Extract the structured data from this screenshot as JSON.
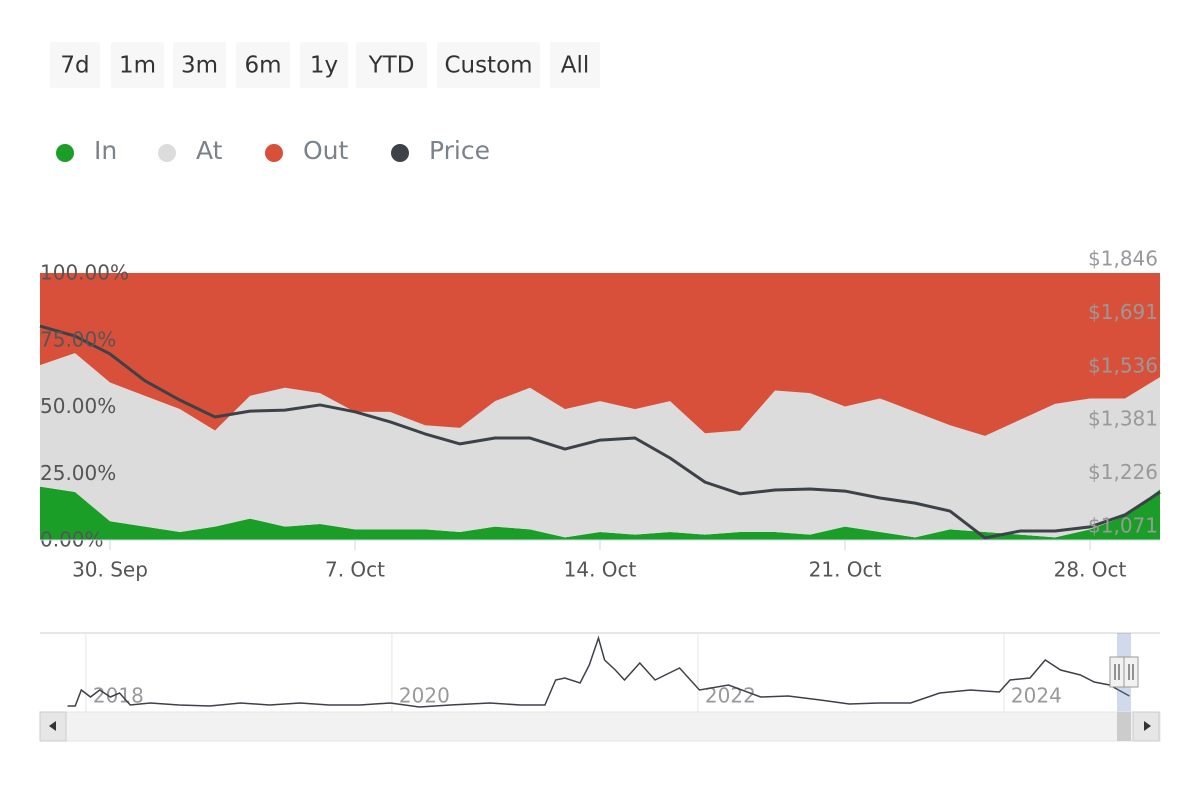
{
  "range_buttons": [
    "7d",
    "1m",
    "3m",
    "6m",
    "1y",
    "YTD",
    "Custom",
    "All"
  ],
  "chart_data": {
    "type": "stacked-area",
    "categories": [
      null,
      null,
      "30. Sep",
      null,
      null,
      null,
      null,
      null,
      null,
      "7. Oct",
      null,
      null,
      null,
      null,
      null,
      null,
      "14. Oct",
      null,
      null,
      null,
      null,
      null,
      null,
      "21. Oct",
      null,
      null,
      null,
      null,
      null,
      null,
      "28. Oct",
      null,
      null
    ],
    "series": [
      {
        "name": "In",
        "color": "#1a9e27",
        "values": [
          20,
          18,
          7,
          5,
          3,
          5,
          8,
          5,
          6,
          4,
          4,
          4,
          3,
          5,
          4,
          1,
          3,
          2,
          3,
          2,
          3,
          3,
          2,
          5,
          3,
          1,
          4,
          3,
          2,
          1,
          4,
          9,
          19
        ]
      },
      {
        "name": "At",
        "color": "#dcdcdc",
        "values": [
          45.5,
          52,
          52,
          49,
          46,
          36,
          46,
          52,
          49,
          44,
          44,
          39,
          39,
          47,
          53,
          48,
          49,
          47,
          49,
          38,
          38,
          53,
          53,
          45,
          50,
          47,
          39,
          36,
          43,
          50,
          49,
          44,
          42
        ]
      },
      {
        "name": "Out",
        "color": "#d9503a",
        "values": [
          34.5,
          30,
          41,
          46,
          51,
          59,
          46,
          43,
          45,
          52,
          52,
          57,
          58,
          48,
          43,
          51,
          48,
          51,
          48,
          60,
          59,
          44,
          45,
          50,
          47,
          52,
          57,
          61,
          55,
          49,
          47,
          47,
          39
        ]
      },
      {
        "name": "Price",
        "color": "#3d4148",
        "axis": "y2",
        "values": [
          1692,
          1663,
          1611,
          1533,
          1477,
          1428,
          1445,
          1448,
          1463,
          1443,
          1414,
          1379,
          1350,
          1367,
          1367,
          1335,
          1361,
          1367,
          1309,
          1239,
          1205,
          1216,
          1219,
          1213,
          1193,
          1178,
          1155,
          1077,
          1097,
          1097,
          1109,
          1144,
          1210
        ]
      }
    ],
    "ylim": [
      0,
      100
    ],
    "yticks": [
      {
        "value": 0,
        "label": "0.00%"
      },
      {
        "value": 25,
        "label": "25.00%"
      },
      {
        "value": 50,
        "label": "50.00%"
      },
      {
        "value": 75,
        "label": "75.00%"
      },
      {
        "value": 100,
        "label": "100.00%"
      }
    ],
    "y2lim": [
      1071,
      1846
    ],
    "y2ticks": [
      {
        "value": 1071,
        "label": "$1,071"
      },
      {
        "value": 1226,
        "label": "$1,226"
      },
      {
        "value": 1381,
        "label": "$1,381"
      },
      {
        "value": 1536,
        "label": "$1,536"
      },
      {
        "value": 1691,
        "label": "$1,691"
      },
      {
        "value": 1846,
        "label": "$1,846"
      }
    ],
    "legend": "top-left"
  },
  "navigator": {
    "type": "line",
    "color": "#3d4148",
    "x": [
      2017.88,
      2017.93,
      2017.97,
      2018.03,
      2018.09,
      2018.16,
      2018.22,
      2018.29,
      2018.42,
      2018.61,
      2018.81,
      2019.01,
      2019.2,
      2019.4,
      2019.59,
      2019.79,
      2019.99,
      2020.18,
      2020.38,
      2020.64,
      2020.84,
      2021.0,
      2021.07,
      2021.13,
      2021.23,
      2021.29,
      2021.35,
      2021.39,
      2021.46,
      2021.52,
      2021.62,
      2021.72,
      2021.88,
      2022.01,
      2022.2,
      2022.41,
      2022.59,
      2022.8,
      2022.99,
      2023.18,
      2023.39,
      2023.58,
      2023.78,
      2023.97,
      2024.04,
      2024.17,
      2024.27,
      2024.37,
      2024.5,
      2024.59,
      2024.69,
      2024.82
    ],
    "values": [
      6,
      6,
      22,
      15,
      22,
      15,
      19,
      7,
      9,
      7,
      6,
      9,
      7,
      9,
      7,
      7,
      9,
      5,
      7,
      9,
      7,
      7,
      32,
      34,
      29,
      47,
      74,
      52,
      42,
      32,
      49,
      32,
      44,
      22,
      27,
      15,
      16,
      12,
      8,
      9,
      9,
      19,
      22,
      20,
      32,
      34,
      52,
      42,
      37,
      30,
      27,
      16
    ],
    "xlim": [
      2017.7,
      2025.02
    ],
    "ylim": [
      0,
      79
    ],
    "xticks": [
      2018,
      2020,
      2022,
      2024
    ]
  }
}
